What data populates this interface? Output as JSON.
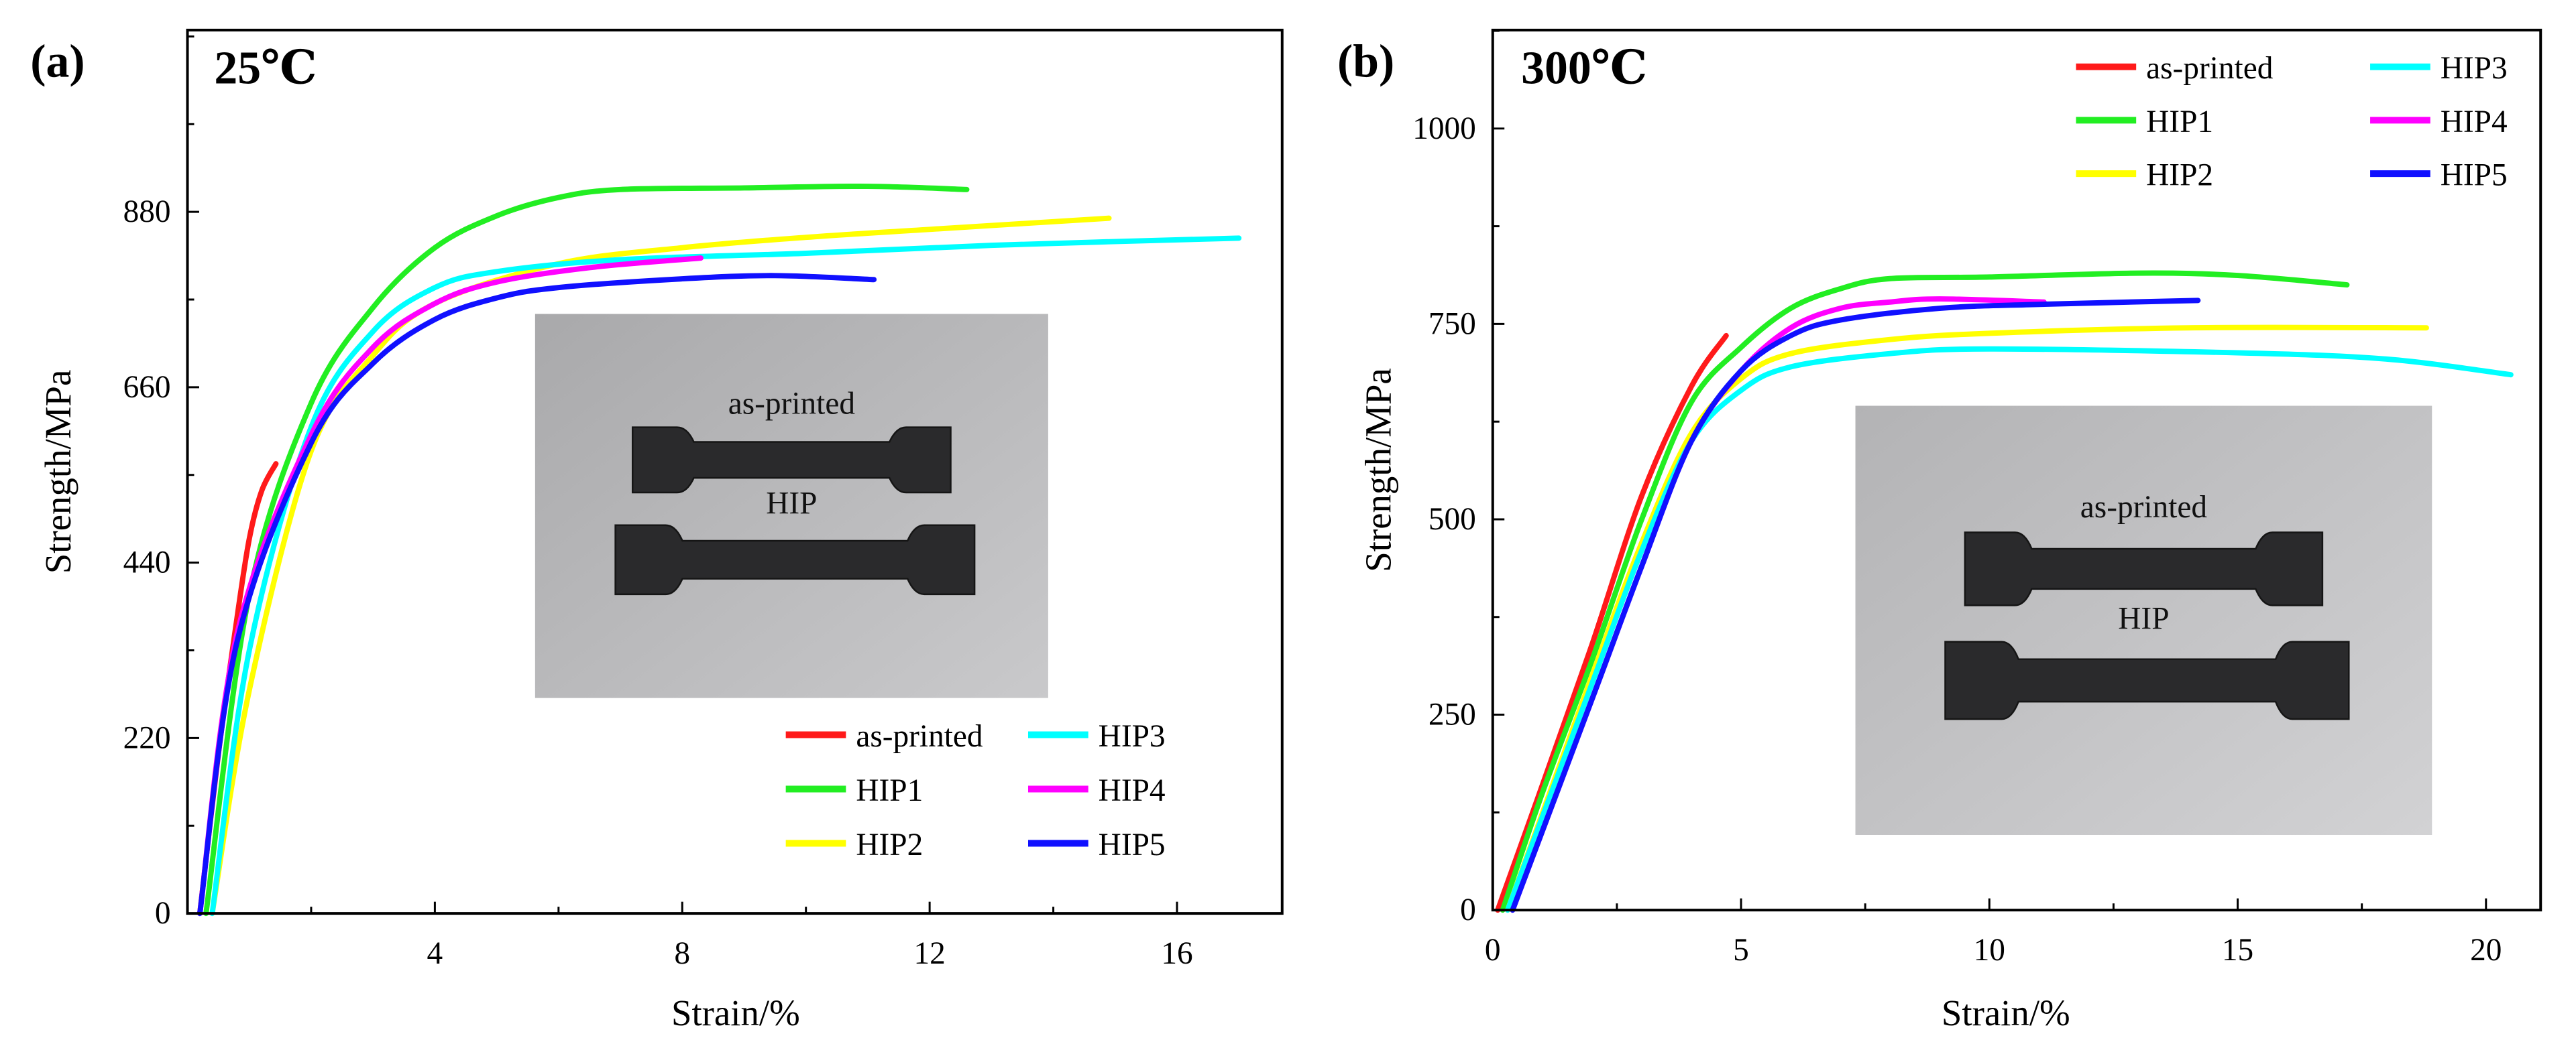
{
  "colors": {
    "as-printed": "#ff1a1a",
    "HIP1": "#22ee22",
    "HIP2": "#ffff00",
    "HIP3": "#00ffff",
    "HIP4": "#ff00ff",
    "HIP5": "#1010ff"
  },
  "chart_data": [
    {
      "type": "line",
      "panel_label": "(a)",
      "title": "25℃",
      "xlabel": "Strain/%",
      "ylabel": "Strength/MPa",
      "xlim": [
        0,
        17.7
      ],
      "ylim": [
        0,
        1108
      ],
      "xticks": [
        4,
        8,
        12,
        16
      ],
      "xminor": 2,
      "yticks": [
        0,
        220,
        440,
        660,
        880
      ],
      "yminor": 110,
      "legend_position": "bottom-right",
      "inset_labels": [
        "as-printed",
        "HIP"
      ],
      "series": [
        {
          "name": "as-printed",
          "x": [
            0.2,
            0.5,
            0.8,
            1.0,
            1.2,
            1.43
          ],
          "y": [
            0,
            200,
            370,
            470,
            530,
            564
          ]
        },
        {
          "name": "HIP1",
          "x": [
            0.3,
            1,
            2,
            3,
            4,
            5,
            6,
            7,
            9,
            11,
            12.6
          ],
          "y": [
            0,
            400,
            640,
            760,
            835,
            875,
            898,
            908,
            910,
            912,
            908
          ]
        },
        {
          "name": "HIP2",
          "x": [
            0.4,
            1,
            2,
            3,
            4,
            6,
            8,
            10,
            12,
            14.9
          ],
          "y": [
            0,
            280,
            580,
            700,
            765,
            815,
            835,
            848,
            858,
            872
          ]
        },
        {
          "name": "HIP3",
          "x": [
            0.4,
            1,
            2,
            3,
            4,
            5,
            7,
            10,
            13,
            17
          ],
          "y": [
            0,
            330,
            610,
            730,
            785,
            805,
            820,
            828,
            838,
            847
          ]
        },
        {
          "name": "HIP4",
          "x": [
            0.2,
            0.8,
            2,
            3,
            4,
            5,
            6.5,
            8.3
          ],
          "y": [
            0,
            350,
            600,
            710,
            765,
            792,
            810,
            822
          ]
        },
        {
          "name": "HIP5",
          "x": [
            0.2,
            0.8,
            2,
            3,
            4,
            5,
            6,
            8,
            9.5,
            11.1
          ],
          "y": [
            0,
            340,
            590,
            690,
            745,
            772,
            785,
            796,
            800,
            795
          ]
        }
      ]
    },
    {
      "type": "line",
      "panel_label": "(b)",
      "title": "300℃",
      "xlabel": "Strain/%",
      "ylabel": "Strength/MPa",
      "xlim": [
        0,
        21.1
      ],
      "ylim": [
        0,
        1126
      ],
      "xticks": [
        0,
        5,
        10,
        15,
        20
      ],
      "xminor": 2.5,
      "yticks": [
        0,
        250,
        500,
        750,
        1000
      ],
      "yminor": 125,
      "legend_position": "top-right",
      "inset_labels": [
        "as-printed",
        "HIP"
      ],
      "series": [
        {
          "name": "as-printed",
          "x": [
            0.1,
            1,
            2,
            3,
            4,
            4.7
          ],
          "y": [
            0,
            160,
            340,
            530,
            670,
            735
          ]
        },
        {
          "name": "HIP1",
          "x": [
            0.2,
            1,
            2,
            3,
            4,
            5,
            6,
            7,
            8,
            10,
            13,
            15,
            17.2
          ],
          "y": [
            0,
            150,
            320,
            500,
            650,
            720,
            770,
            795,
            808,
            810,
            815,
            812,
            800
          ]
        },
        {
          "name": "HIP2",
          "x": [
            0.3,
            2,
            3,
            4,
            5,
            6,
            8,
            10,
            14,
            18.8
          ],
          "y": [
            0,
            300,
            470,
            610,
            680,
            712,
            730,
            738,
            745,
            745
          ]
        },
        {
          "name": "HIP3",
          "x": [
            0.3,
            2,
            3,
            4,
            5,
            6,
            8,
            10,
            15,
            18,
            20.5
          ],
          "y": [
            0,
            290,
            460,
            600,
            665,
            695,
            712,
            718,
            713,
            705,
            685
          ]
        },
        {
          "name": "HIP4",
          "x": [
            0.4,
            2,
            3,
            4,
            5,
            6,
            7,
            8,
            9,
            11.1
          ],
          "y": [
            0,
            270,
            440,
            600,
            690,
            745,
            770,
            778,
            782,
            778
          ]
        },
        {
          "name": "HIP5",
          "x": [
            0.4,
            2,
            3,
            4,
            5,
            6,
            7,
            9,
            11,
            14.2
          ],
          "y": [
            0,
            270,
            440,
            600,
            690,
            735,
            755,
            770,
            775,
            780
          ]
        }
      ]
    }
  ]
}
